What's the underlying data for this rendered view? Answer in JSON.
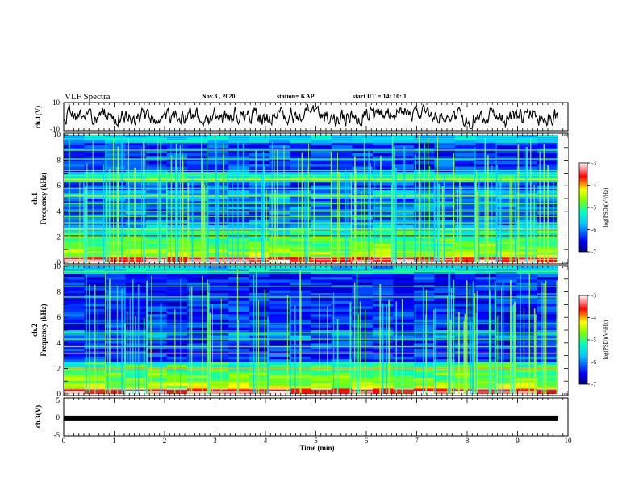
{
  "header": {
    "title": "VLF Spectra",
    "date": "Nov.3 , 2020",
    "station": "station= KAP",
    "start_time": "start UT = 14: 10: 1"
  },
  "chart_data": [
    {
      "id": "ch1_waveform",
      "type": "line",
      "ylabel": "ch.1(V)",
      "ylim": [
        -10,
        10
      ],
      "y_ticks": [
        "10",
        "-10"
      ],
      "xlim": [
        0,
        10
      ],
      "x_extent_data": [
        0,
        9.8
      ]
    },
    {
      "id": "ch1_spectrogram",
      "type": "heatmap",
      "ylabel": "ch.1\nFrequency (kHz)",
      "ylim": [
        0,
        10
      ],
      "y_ticks": [
        "0",
        "2",
        "4",
        "6",
        "8",
        "10"
      ],
      "xlim": [
        0,
        10
      ],
      "x_extent_data": [
        0,
        9.8
      ],
      "colorbar": {
        "label": "log(PSD)(V²/Hz)",
        "range": [
          -7,
          -3
        ],
        "ticks": [
          "-3",
          "-4",
          "-5",
          "-6",
          "-7"
        ]
      },
      "bands_khz": [
        {
          "f": 0.3,
          "v": -3.6
        },
        {
          "f": 0.8,
          "v": -4.4
        },
        {
          "f": 1.2,
          "v": -4.8
        },
        {
          "f": 1.6,
          "v": -5.0
        },
        {
          "f": 2.1,
          "v": -3.6
        },
        {
          "f": 2.6,
          "v": -4.2
        },
        {
          "f": 3.1,
          "v": -4.8
        },
        {
          "f": 3.6,
          "v": -4.6
        },
        {
          "f": 4.0,
          "v": -4.4
        },
        {
          "f": 4.6,
          "v": -4.9
        },
        {
          "f": 5.2,
          "v": -4.4
        },
        {
          "f": 5.8,
          "v": -5.2
        },
        {
          "f": 6.5,
          "v": -4.2
        },
        {
          "f": 6.8,
          "v": -4.8
        },
        {
          "f": 7.2,
          "v": -4.9
        },
        {
          "f": 8.1,
          "v": -4.9
        },
        {
          "f": 8.8,
          "v": -4.9
        },
        {
          "f": 9.7,
          "v": -5.2
        }
      ]
    },
    {
      "id": "ch2_spectrogram",
      "type": "heatmap",
      "ylabel": "ch.2\nFrequency (kHz)",
      "ylim": [
        0,
        10
      ],
      "y_ticks": [
        "0",
        "2",
        "4",
        "6",
        "8",
        "10"
      ],
      "xlim": [
        0,
        10
      ],
      "x_extent_data": [
        0,
        9.8
      ],
      "colorbar": {
        "label": "log(PSD)(V²/Hz)",
        "range": [
          -7,
          -3
        ],
        "ticks": [
          "-3",
          "-4",
          "-5",
          "-6",
          "-7"
        ]
      },
      "bands_khz": [
        {
          "f": 0.3,
          "v": -3.6
        },
        {
          "f": 1.0,
          "v": -4.8
        },
        {
          "f": 1.7,
          "v": -5.0
        },
        {
          "f": 2.0,
          "v": -4.0
        },
        {
          "f": 3.2,
          "v": -3.8
        },
        {
          "f": 3.7,
          "v": -4.6
        },
        {
          "f": 4.3,
          "v": -4.9
        },
        {
          "f": 4.8,
          "v": -4.9
        },
        {
          "f": 5.5,
          "v": -5.2
        },
        {
          "f": 7.6,
          "v": -4.9
        },
        {
          "f": 8.4,
          "v": -4.8
        },
        {
          "f": 9.6,
          "v": -4.9
        }
      ]
    },
    {
      "id": "ch3_waveform",
      "type": "line",
      "ylabel": "ch.3(V)",
      "ylim": [
        -5,
        5
      ],
      "y_ticks": [
        "5",
        "0",
        "-5"
      ],
      "xlim": [
        0,
        10
      ],
      "x_extent_data": [
        0,
        9.8
      ],
      "constant_value": -0.3
    }
  ],
  "x_axis": {
    "label": "Time (min)",
    "ticks": [
      "0",
      "1",
      "2",
      "3",
      "4",
      "5",
      "6",
      "7",
      "8",
      "9",
      "10"
    ]
  },
  "colors": {
    "colormap": [
      "#000080",
      "#0000ff",
      "#00c0ff",
      "#00ffc0",
      "#7fff00",
      "#ffff00",
      "#ff0000",
      "#ffffff"
    ]
  }
}
